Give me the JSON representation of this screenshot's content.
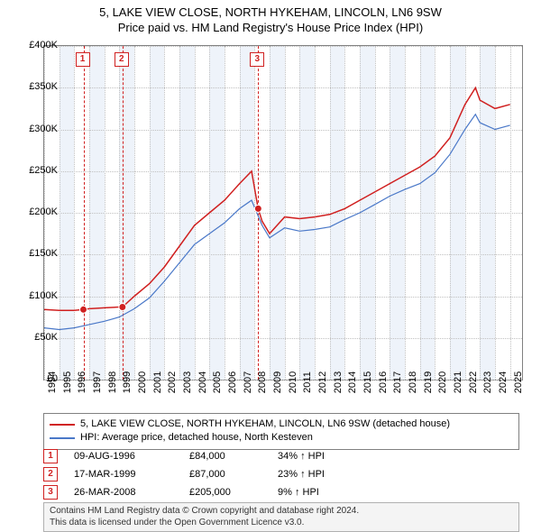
{
  "title_line1": "5, LAKE VIEW CLOSE, NORTH HYKEHAM, LINCOLN, LN6 9SW",
  "title_line2": "Price paid vs. HM Land Registry's House Price Index (HPI)",
  "chart": {
    "type": "line",
    "xlim": [
      1994,
      2025.8
    ],
    "ylim": [
      0,
      400000
    ],
    "ytick_step": 50000,
    "yticks": [
      "£0",
      "£50K",
      "£100K",
      "£150K",
      "£200K",
      "£250K",
      "£300K",
      "£350K",
      "£400K"
    ],
    "xticks": [
      1994,
      1995,
      1996,
      1997,
      1998,
      1999,
      2000,
      2001,
      2002,
      2003,
      2004,
      2005,
      2006,
      2007,
      2008,
      2009,
      2010,
      2011,
      2012,
      2013,
      2014,
      2015,
      2016,
      2017,
      2018,
      2019,
      2020,
      2021,
      2022,
      2023,
      2024,
      2025
    ],
    "background_color": "#ffffff",
    "grid_color": "#c0c0c0",
    "band_color": "#eef3fa",
    "series": [
      {
        "name": "price_paid",
        "label": "5, LAKE VIEW CLOSE, NORTH HYKEHAM, LINCOLN, LN6 9SW (detached house)",
        "color": "#d02020",
        "line_width": 1.5,
        "data": [
          [
            1994.0,
            84000
          ],
          [
            1995.0,
            83000
          ],
          [
            1996.0,
            83000
          ],
          [
            1996.6,
            84000
          ],
          [
            1997.0,
            85000
          ],
          [
            1998.0,
            86000
          ],
          [
            1999.0,
            87000
          ],
          [
            1999.21,
            87000
          ],
          [
            2000.0,
            100000
          ],
          [
            2001.0,
            115000
          ],
          [
            2002.0,
            135000
          ],
          [
            2003.0,
            160000
          ],
          [
            2004.0,
            185000
          ],
          [
            2005.0,
            200000
          ],
          [
            2006.0,
            215000
          ],
          [
            2007.0,
            235000
          ],
          [
            2007.8,
            250000
          ],
          [
            2008.24,
            205000
          ],
          [
            2008.5,
            190000
          ],
          [
            2009.0,
            175000
          ],
          [
            2010.0,
            195000
          ],
          [
            2011.0,
            193000
          ],
          [
            2012.0,
            195000
          ],
          [
            2013.0,
            198000
          ],
          [
            2014.0,
            205000
          ],
          [
            2015.0,
            215000
          ],
          [
            2016.0,
            225000
          ],
          [
            2017.0,
            235000
          ],
          [
            2018.0,
            245000
          ],
          [
            2019.0,
            255000
          ],
          [
            2020.0,
            268000
          ],
          [
            2021.0,
            290000
          ],
          [
            2022.0,
            330000
          ],
          [
            2022.7,
            350000
          ],
          [
            2023.0,
            335000
          ],
          [
            2024.0,
            325000
          ],
          [
            2025.0,
            330000
          ]
        ]
      },
      {
        "name": "hpi",
        "label": "HPI: Average price, detached house, North Kesteven",
        "color": "#4a78c8",
        "line_width": 1.2,
        "data": [
          [
            1994.0,
            62000
          ],
          [
            1995.0,
            60000
          ],
          [
            1996.0,
            62000
          ],
          [
            1997.0,
            66000
          ],
          [
            1998.0,
            70000
          ],
          [
            1999.0,
            75000
          ],
          [
            2000.0,
            85000
          ],
          [
            2001.0,
            98000
          ],
          [
            2002.0,
            118000
          ],
          [
            2003.0,
            140000
          ],
          [
            2004.0,
            162000
          ],
          [
            2005.0,
            175000
          ],
          [
            2006.0,
            188000
          ],
          [
            2007.0,
            205000
          ],
          [
            2007.8,
            215000
          ],
          [
            2008.5,
            185000
          ],
          [
            2009.0,
            170000
          ],
          [
            2010.0,
            182000
          ],
          [
            2011.0,
            178000
          ],
          [
            2012.0,
            180000
          ],
          [
            2013.0,
            183000
          ],
          [
            2014.0,
            192000
          ],
          [
            2015.0,
            200000
          ],
          [
            2016.0,
            210000
          ],
          [
            2017.0,
            220000
          ],
          [
            2018.0,
            228000
          ],
          [
            2019.0,
            235000
          ],
          [
            2020.0,
            248000
          ],
          [
            2021.0,
            270000
          ],
          [
            2022.0,
            300000
          ],
          [
            2022.7,
            318000
          ],
          [
            2023.0,
            308000
          ],
          [
            2024.0,
            300000
          ],
          [
            2025.0,
            305000
          ]
        ]
      }
    ],
    "markers": [
      {
        "n": "1",
        "x": 1996.61,
        "y": 84000
      },
      {
        "n": "2",
        "x": 1999.21,
        "y": 87000
      },
      {
        "n": "3",
        "x": 2008.24,
        "y": 205000
      }
    ]
  },
  "legend": {
    "items": [
      {
        "color": "#d02020",
        "label": "5, LAKE VIEW CLOSE, NORTH HYKEHAM, LINCOLN, LN6 9SW (detached house)"
      },
      {
        "color": "#4a78c8",
        "label": "HPI: Average price, detached house, North Kesteven"
      }
    ]
  },
  "events": [
    {
      "n": "1",
      "date": "09-AUG-1996",
      "price": "£84,000",
      "hpi": "34% ↑ HPI"
    },
    {
      "n": "2",
      "date": "17-MAR-1999",
      "price": "£87,000",
      "hpi": "23% ↑ HPI"
    },
    {
      "n": "3",
      "date": "26-MAR-2008",
      "price": "£205,000",
      "hpi": "9% ↑ HPI"
    }
  ],
  "footer_line1": "Contains HM Land Registry data © Crown copyright and database right 2024.",
  "footer_line2": "This data is licensed under the Open Government Licence v3.0."
}
